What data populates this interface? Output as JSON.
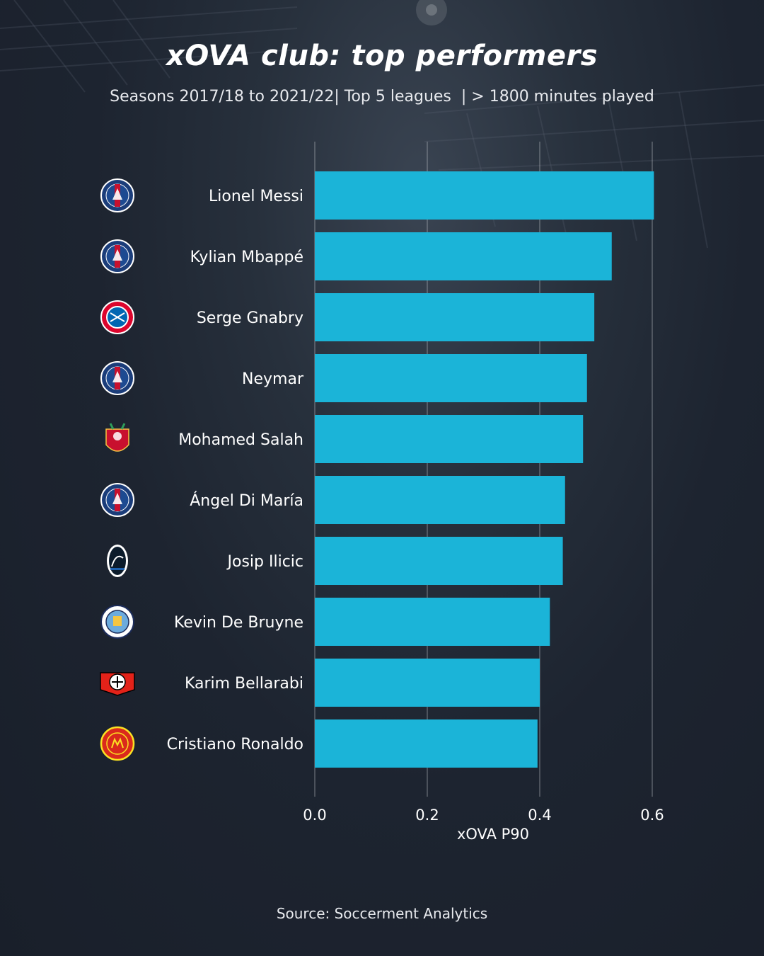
{
  "title": "xOVA club: top performers",
  "subtitle": "Seasons 2017/18 to 2021/22| Top 5 leagues  | > 1800 minutes played",
  "source": "Source: Soccerment Analytics",
  "colors": {
    "bar": "#1bb4d8",
    "grid": "#c8ccd2",
    "text": "#ffffff"
  },
  "chart_data": {
    "type": "bar",
    "orientation": "horizontal",
    "categories": [
      "Lionel Messi",
      "Kylian Mbappé",
      "Serge Gnabry",
      "Neymar",
      "Mohamed Salah",
      "Ángel Di María",
      "Josip Ilicic",
      "Kevin De Bruyne",
      "Karim Bellarabi",
      "Cristiano Ronaldo"
    ],
    "clubs": [
      "psg-logo",
      "psg-logo",
      "bayern-munich-logo",
      "psg-logo",
      "liverpool-logo",
      "psg-logo",
      "atalanta-logo",
      "manchester-city-logo",
      "bayer-leverkusen-logo",
      "manchester-united-logo"
    ],
    "values": [
      0.603,
      0.528,
      0.497,
      0.484,
      0.477,
      0.445,
      0.441,
      0.418,
      0.4,
      0.396
    ],
    "xlabel": "xOVA P90",
    "ylabel": "",
    "xlim": [
      0,
      0.6
    ],
    "xticks": [
      "0.0",
      "0.2",
      "0.4",
      "0.6"
    ],
    "grid": "vertical"
  }
}
